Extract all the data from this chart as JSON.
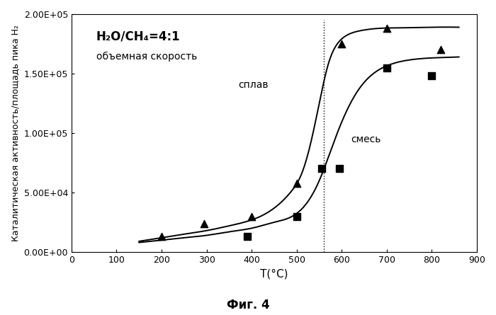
{
  "title": "Фиг. 4",
  "xlabel": "T(°C)",
  "ylabel": "Каталитическая активность/площадь пика H₂",
  "annotation_line1": "H₂O/CH₄=4:1",
  "annotation_line2": "объемная скорость",
  "label_splav": "сплав",
  "label_smes": "смесь",
  "xlim": [
    0,
    900
  ],
  "ylim": [
    0,
    200000
  ],
  "xticks": [
    0,
    100,
    200,
    300,
    400,
    500,
    600,
    700,
    800,
    900
  ],
  "yticks": [
    0,
    50000,
    100000,
    150000,
    200000
  ],
  "ytick_labels": [
    "0.00E+00",
    "5.00E+04",
    "1.00E+05",
    "1.50E+05",
    "2.00E+05"
  ],
  "vline_x": 560,
  "triangle_x": [
    200,
    295,
    400,
    500,
    600,
    700,
    820
  ],
  "triangle_y": [
    13000,
    24000,
    30000,
    58000,
    175000,
    188000,
    170000
  ],
  "square_x": [
    390,
    500,
    555,
    595,
    700,
    800
  ],
  "square_y": [
    13000,
    30000,
    70000,
    70000,
    155000,
    148000
  ],
  "curve_splav_x": [
    150,
    200,
    250,
    300,
    350,
    400,
    430,
    460,
    490,
    510,
    530,
    550,
    570,
    590,
    610,
    640,
    680,
    730,
    800,
    860
  ],
  "curve_splav_y": [
    9000,
    12000,
    15000,
    18000,
    22000,
    27000,
    32000,
    40000,
    52000,
    65000,
    90000,
    125000,
    158000,
    175000,
    182000,
    186000,
    188000,
    188500,
    189000,
    189000
  ],
  "curve_smes_x": [
    150,
    200,
    250,
    300,
    350,
    400,
    450,
    490,
    520,
    550,
    580,
    610,
    640,
    670,
    710,
    760,
    820,
    860
  ],
  "curve_smes_y": [
    8000,
    10000,
    12000,
    14000,
    17000,
    20000,
    25000,
    30000,
    40000,
    60000,
    90000,
    118000,
    138000,
    150000,
    158000,
    162000,
    163500,
    164000
  ],
  "background_color": "#ffffff",
  "line_color": "#000000",
  "marker_color": "#000000",
  "fontsize_axis_label": 10,
  "fontsize_tick": 9,
  "fontsize_annotation": 11,
  "fontsize_label": 10,
  "fontsize_title": 12
}
